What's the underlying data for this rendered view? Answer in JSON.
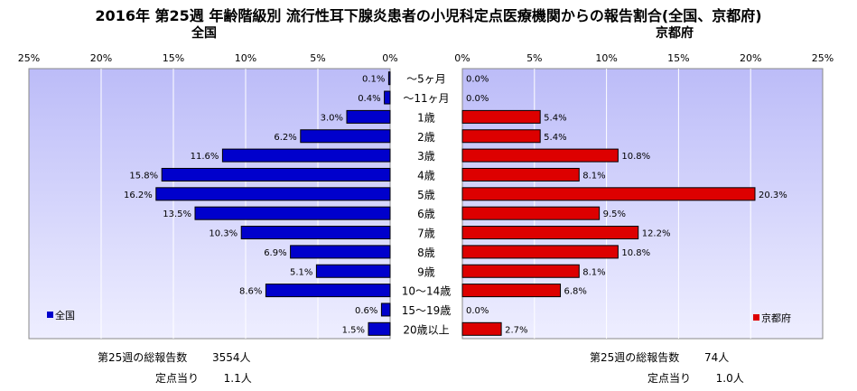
{
  "title": "2016年 第25週 年齢階級別 流行性耳下腺炎患者の小児科定点医療機関からの報告割合(全国、京都府)",
  "chart_data": {
    "type": "bar",
    "title": "2016年 第25週 年齢階級別 流行性耳下腺炎患者の小児科定点医療機関からの報告割合(全国、京都府)",
    "categories": [
      "～5ヶ月",
      "～11ヶ月",
      "1歳",
      "2歳",
      "3歳",
      "4歳",
      "5歳",
      "6歳",
      "7歳",
      "8歳",
      "9歳",
      "10～14歳",
      "15～19歳",
      "20歳以上"
    ],
    "xlim": [
      0,
      25
    ],
    "tick_labels": [
      "0%",
      "5%",
      "10%",
      "15%",
      "20%",
      "25%"
    ],
    "series": [
      {
        "name": "全国",
        "subtitle": "全国",
        "color": "#0000cc",
        "values": [
          0.1,
          0.4,
          3.0,
          6.2,
          11.6,
          15.8,
          16.2,
          13.5,
          10.3,
          6.9,
          5.1,
          8.6,
          0.6,
          1.5
        ]
      },
      {
        "name": "京都府",
        "subtitle": "京都府",
        "color": "#dd0000",
        "values": [
          0.0,
          0.0,
          5.4,
          5.4,
          10.8,
          8.1,
          20.3,
          9.5,
          12.2,
          10.8,
          8.1,
          6.8,
          0.0,
          2.7
        ]
      }
    ],
    "legend": {
      "left": "全国",
      "right": "京都府"
    },
    "grid": true
  },
  "footer": {
    "left": {
      "total_label": "第25週の総報告数",
      "total_value": "3554人",
      "per_label": "定点当り",
      "per_value": "1.1人"
    },
    "right": {
      "total_label": "第25週の総報告数",
      "total_value": "74人",
      "per_label": "定点当り",
      "per_value": "1.0人"
    }
  },
  "colors": {
    "plot_bg_top": "#bcbcf8",
    "plot_bg_bottom": "#eeeeff",
    "grid": "#ffffff"
  }
}
